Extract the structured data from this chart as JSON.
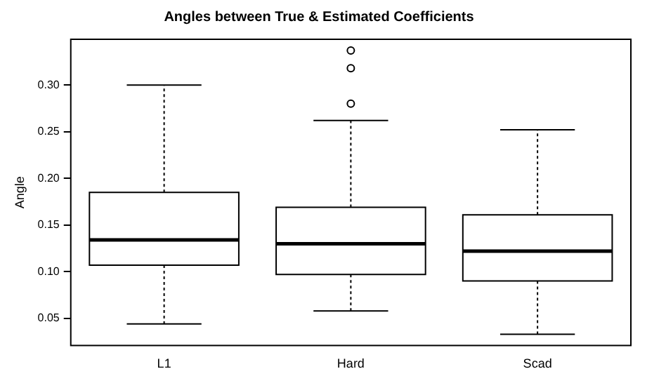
{
  "chart_data": {
    "type": "box",
    "title": "Angles between True & Estimated Coefficients",
    "ylabel": "Angle",
    "categories": [
      "L1",
      "Hard",
      "Scad"
    ],
    "boxes": [
      {
        "low": 0.044,
        "q1": 0.107,
        "median": 0.134,
        "q3": 0.185,
        "high": 0.3
      },
      {
        "low": 0.058,
        "q1": 0.097,
        "median": 0.13,
        "q3": 0.169,
        "high": 0.262,
        "outliers": [
          0.28,
          0.318,
          0.337
        ]
      },
      {
        "low": 0.033,
        "q1": 0.09,
        "median": 0.122,
        "q3": 0.161,
        "high": 0.252
      }
    ],
    "color": "#ffffff",
    "ylim": [
      0.021,
      0.349
    ],
    "yticks": [
      0.05,
      {
        "value": 0.1,
        "label": "0.10"
      },
      0.15,
      {
        "value": 0.2,
        "label": "0.20"
      },
      0.25,
      {
        "value": 0.3,
        "label": "0.30"
      }
    ],
    "grid": false,
    "legend": false,
    "marker": "circle"
  }
}
